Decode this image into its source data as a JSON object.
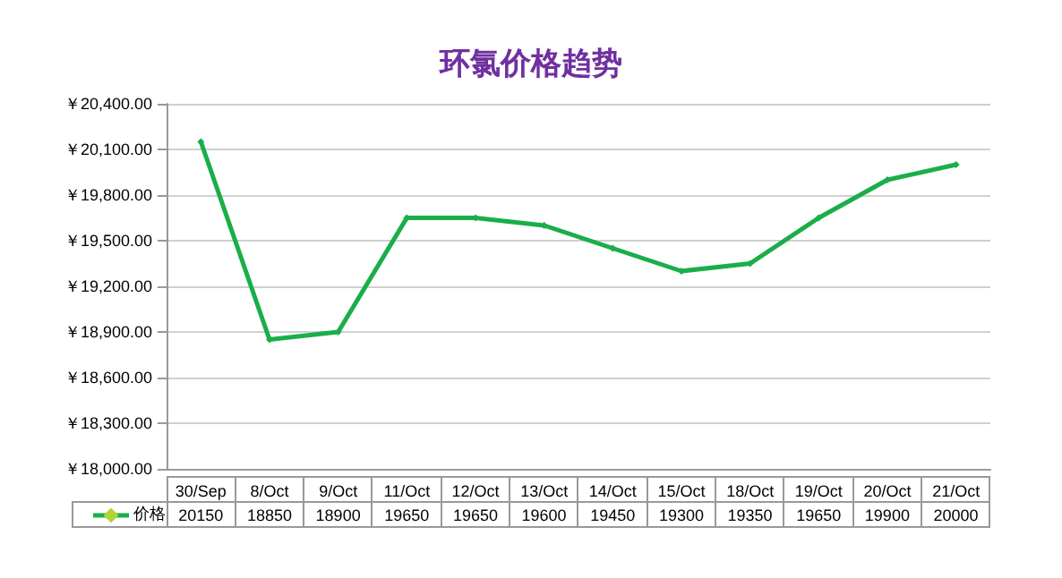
{
  "chart_data": {
    "type": "line",
    "title": "环氯价格趋势",
    "categories": [
      "30/Sep",
      "8/Oct",
      "9/Oct",
      "11/Oct",
      "12/Oct",
      "13/Oct",
      "14/Oct",
      "15/Oct",
      "18/Oct",
      "19/Oct",
      "20/Oct",
      "21/Oct"
    ],
    "series": [
      {
        "name": "价格",
        "color": "#1aae4a",
        "values": [
          20150,
          18850,
          18900,
          19650,
          19650,
          19600,
          19450,
          19300,
          19350,
          19650,
          19900,
          20000
        ]
      }
    ],
    "ylim": [
      18000,
      20400
    ],
    "yticks": [
      {
        "value": 18000,
        "label": "￥18,000.00"
      },
      {
        "value": 18300,
        "label": "￥18,300.00"
      },
      {
        "value": 18600,
        "label": "￥18,600.00"
      },
      {
        "value": 18900,
        "label": "￥18,900.00"
      },
      {
        "value": 19200,
        "label": "￥19,200.00"
      },
      {
        "value": 19500,
        "label": "￥19,500.00"
      },
      {
        "value": 19800,
        "label": "￥19,800.00"
      },
      {
        "value": 20100,
        "label": "￥20,100.00"
      },
      {
        "value": 20400,
        "label": "￥20,400.00"
      }
    ],
    "grid": "y",
    "legend": "bottom",
    "marker": "diamond",
    "line_style": "solid",
    "data_labels": true
  }
}
